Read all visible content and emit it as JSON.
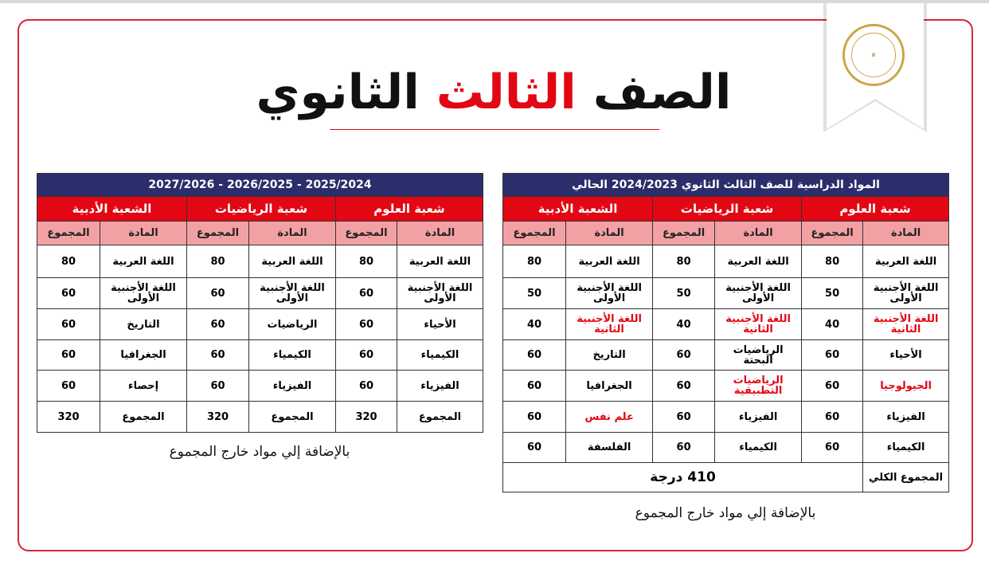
{
  "page_title": {
    "part1": "الصف",
    "part2": "الثالث",
    "part3": "الثانوي"
  },
  "logo": {
    "text": "MINISTRY OF EDUCATION AND TECHNICAL EDUCATION"
  },
  "colors": {
    "accent_red": "#e30613",
    "navy": "#2b2e6b",
    "pink": "#f3a0a5"
  },
  "current_table": {
    "title": "المواد الدراسية للصف الثالث الثانوي 2024/2023 الحالي",
    "branches": [
      "شعبة العلوم",
      "شعبة الرياضيات",
      "الشعبة الأدبية"
    ],
    "col_subject": "المادة",
    "col_total": "المجموع",
    "rows": [
      [
        {
          "t": "اللغة العربية"
        },
        {
          "t": "80"
        },
        {
          "t": "اللغة العربية"
        },
        {
          "t": "80"
        },
        {
          "t": "اللغة العربية"
        },
        {
          "t": "80"
        }
      ],
      [
        {
          "t": "اللغة الأجنبية الأولى"
        },
        {
          "t": "50"
        },
        {
          "t": "اللغة الأجنبية الأولى"
        },
        {
          "t": "50"
        },
        {
          "t": "اللغة الأجنبية الأولى"
        },
        {
          "t": "50"
        }
      ],
      [
        {
          "t": "اللغة الأجنبية الثانية",
          "hl": true
        },
        {
          "t": "40"
        },
        {
          "t": "اللغة الأجنبية الثانية",
          "hl": true
        },
        {
          "t": "40"
        },
        {
          "t": "اللغة الأجنبية الثانية",
          "hl": true
        },
        {
          "t": "40"
        }
      ],
      [
        {
          "t": "الأحياء"
        },
        {
          "t": "60"
        },
        {
          "t": "الرياضيات البحتة"
        },
        {
          "t": "60"
        },
        {
          "t": "التاريخ"
        },
        {
          "t": "60"
        }
      ],
      [
        {
          "t": "الجيولوجيا",
          "hl": true
        },
        {
          "t": "60"
        },
        {
          "t": "الرياضيات التطبيقية",
          "hl": true
        },
        {
          "t": "60"
        },
        {
          "t": "الجغرافيا"
        },
        {
          "t": "60"
        }
      ],
      [
        {
          "t": "الفيزياء"
        },
        {
          "t": "60"
        },
        {
          "t": "الفيزياء"
        },
        {
          "t": "60"
        },
        {
          "t": "علم نفس",
          "hl": true
        },
        {
          "t": "60"
        }
      ],
      [
        {
          "t": "الكيمياء"
        },
        {
          "t": "60"
        },
        {
          "t": "الكيمياء"
        },
        {
          "t": "60"
        },
        {
          "t": "الفلسفة"
        },
        {
          "t": "60"
        }
      ]
    ],
    "grand_total_label": "المجموع الكلي",
    "grand_total_value": "410 درجة",
    "note": "بالإضافة إلي مواد خارج المجموع"
  },
  "future_table": {
    "title": "2025/2024 - 2026/2025 - 2027/2026",
    "branches": [
      "شعبة العلوم",
      "شعبة الرياضيات",
      "الشعبة الأدبية"
    ],
    "col_subject": "المادة",
    "col_total": "المجموع",
    "rows": [
      [
        {
          "t": "اللغة العربية"
        },
        {
          "t": "80"
        },
        {
          "t": "اللغة العربية"
        },
        {
          "t": "80"
        },
        {
          "t": "اللغة العربية"
        },
        {
          "t": "80"
        }
      ],
      [
        {
          "t": "اللغة الأجنبية الأولى"
        },
        {
          "t": "60"
        },
        {
          "t": "اللغة الأجنبية الأولى"
        },
        {
          "t": "60"
        },
        {
          "t": "اللغة الأجنبية الأولى"
        },
        {
          "t": "60"
        }
      ],
      [
        {
          "t": "الأحياء"
        },
        {
          "t": "60"
        },
        {
          "t": "الرياضيات"
        },
        {
          "t": "60"
        },
        {
          "t": "التاريخ"
        },
        {
          "t": "60"
        }
      ],
      [
        {
          "t": "الكيمياء"
        },
        {
          "t": "60"
        },
        {
          "t": "الكيمياء"
        },
        {
          "t": "60"
        },
        {
          "t": "الجغرافيا"
        },
        {
          "t": "60"
        }
      ],
      [
        {
          "t": "الفيزياء"
        },
        {
          "t": "60"
        },
        {
          "t": "الفيزياء"
        },
        {
          "t": "60"
        },
        {
          "t": "إحصاء"
        },
        {
          "t": "60"
        }
      ],
      [
        {
          "t": "المجموع"
        },
        {
          "t": "320"
        },
        {
          "t": "المجموع"
        },
        {
          "t": "320"
        },
        {
          "t": "المجموع"
        },
        {
          "t": "320"
        }
      ]
    ],
    "note": "بالإضافة إلي مواد خارج المجموع"
  }
}
